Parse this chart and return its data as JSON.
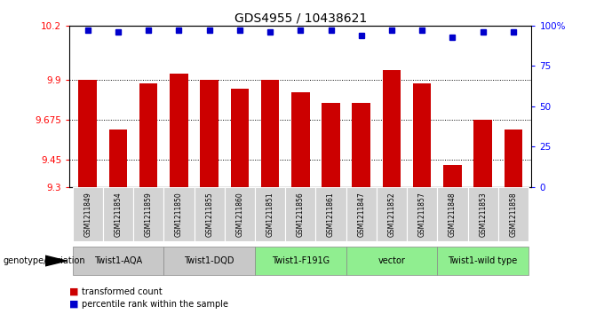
{
  "title": "GDS4955 / 10438621",
  "samples": [
    "GSM1211849",
    "GSM1211854",
    "GSM1211859",
    "GSM1211850",
    "GSM1211855",
    "GSM1211860",
    "GSM1211851",
    "GSM1211856",
    "GSM1211861",
    "GSM1211847",
    "GSM1211852",
    "GSM1211857",
    "GSM1211848",
    "GSM1211853",
    "GSM1211858"
  ],
  "bar_values": [
    9.9,
    9.62,
    9.88,
    9.93,
    9.9,
    9.85,
    9.9,
    9.83,
    9.77,
    9.77,
    9.95,
    9.88,
    9.42,
    9.675,
    9.62
  ],
  "percentile_values": [
    97,
    96,
    97,
    97,
    97,
    97,
    96,
    97,
    97,
    94,
    97,
    97,
    93,
    96,
    96
  ],
  "groups": [
    {
      "label": "Twist1-AQA",
      "start": 0,
      "end": 3
    },
    {
      "label": "Twist1-DQD",
      "start": 3,
      "end": 6
    },
    {
      "label": "Twist1-F191G",
      "start": 6,
      "end": 9
    },
    {
      "label": "vector",
      "start": 9,
      "end": 12
    },
    {
      "label": "Twist1-wild type",
      "start": 12,
      "end": 15
    }
  ],
  "group_colors": [
    "#c8c8c8",
    "#c8c8c8",
    "#90ee90",
    "#90ee90",
    "#90ee90"
  ],
  "ylim_left": [
    9.3,
    10.2
  ],
  "ylim_right": [
    0,
    100
  ],
  "yticks_left": [
    9.3,
    9.45,
    9.675,
    9.9,
    10.2
  ],
  "ytick_labels_left": [
    "9.3",
    "9.45",
    "9.675",
    "9.9",
    "10.2"
  ],
  "yticks_right": [
    0,
    25,
    50,
    75,
    100
  ],
  "ytick_labels_right": [
    "0",
    "25",
    "50",
    "75",
    "100%"
  ],
  "bar_color": "#cc0000",
  "dot_color": "#0000cc",
  "gridline_values": [
    9.45,
    9.675,
    9.9
  ],
  "genotype_label": "genotype/variation",
  "legend_red": "transformed count",
  "legend_blue": "percentile rank within the sample",
  "sample_box_color": "#d3d3d3",
  "bar_bottom": 9.3
}
